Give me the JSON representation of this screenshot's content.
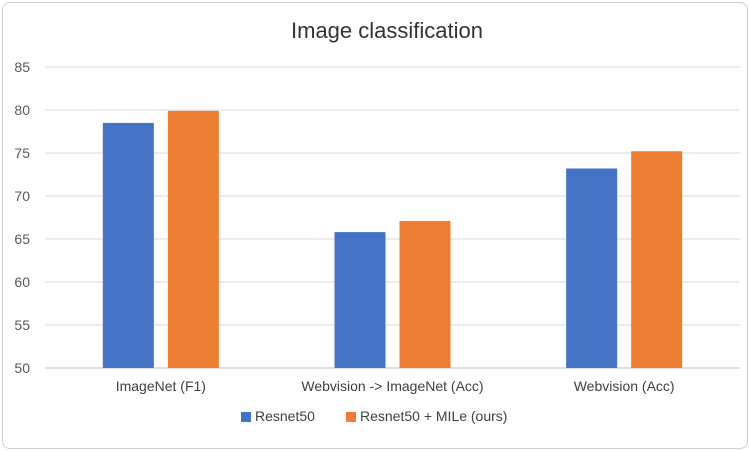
{
  "chart_data": {
    "type": "bar",
    "title": "Image classification",
    "categories": [
      "ImageNet (F1)",
      "Webvision -> ImageNet (Acc)",
      "Webvision (Acc)"
    ],
    "series": [
      {
        "name": "Resnet50",
        "values": [
          78.5,
          65.8,
          73.2
        ],
        "color": "#4472C4"
      },
      {
        "name": "Resnet50 + MILe (ours)",
        "values": [
          79.9,
          67.1,
          75.2
        ],
        "color": "#ED7D31"
      }
    ],
    "yticks": [
      50,
      55,
      60,
      65,
      70,
      75,
      80,
      85
    ],
    "ylim": [
      50,
      85
    ],
    "grid": true,
    "legend": "bottom-center"
  }
}
